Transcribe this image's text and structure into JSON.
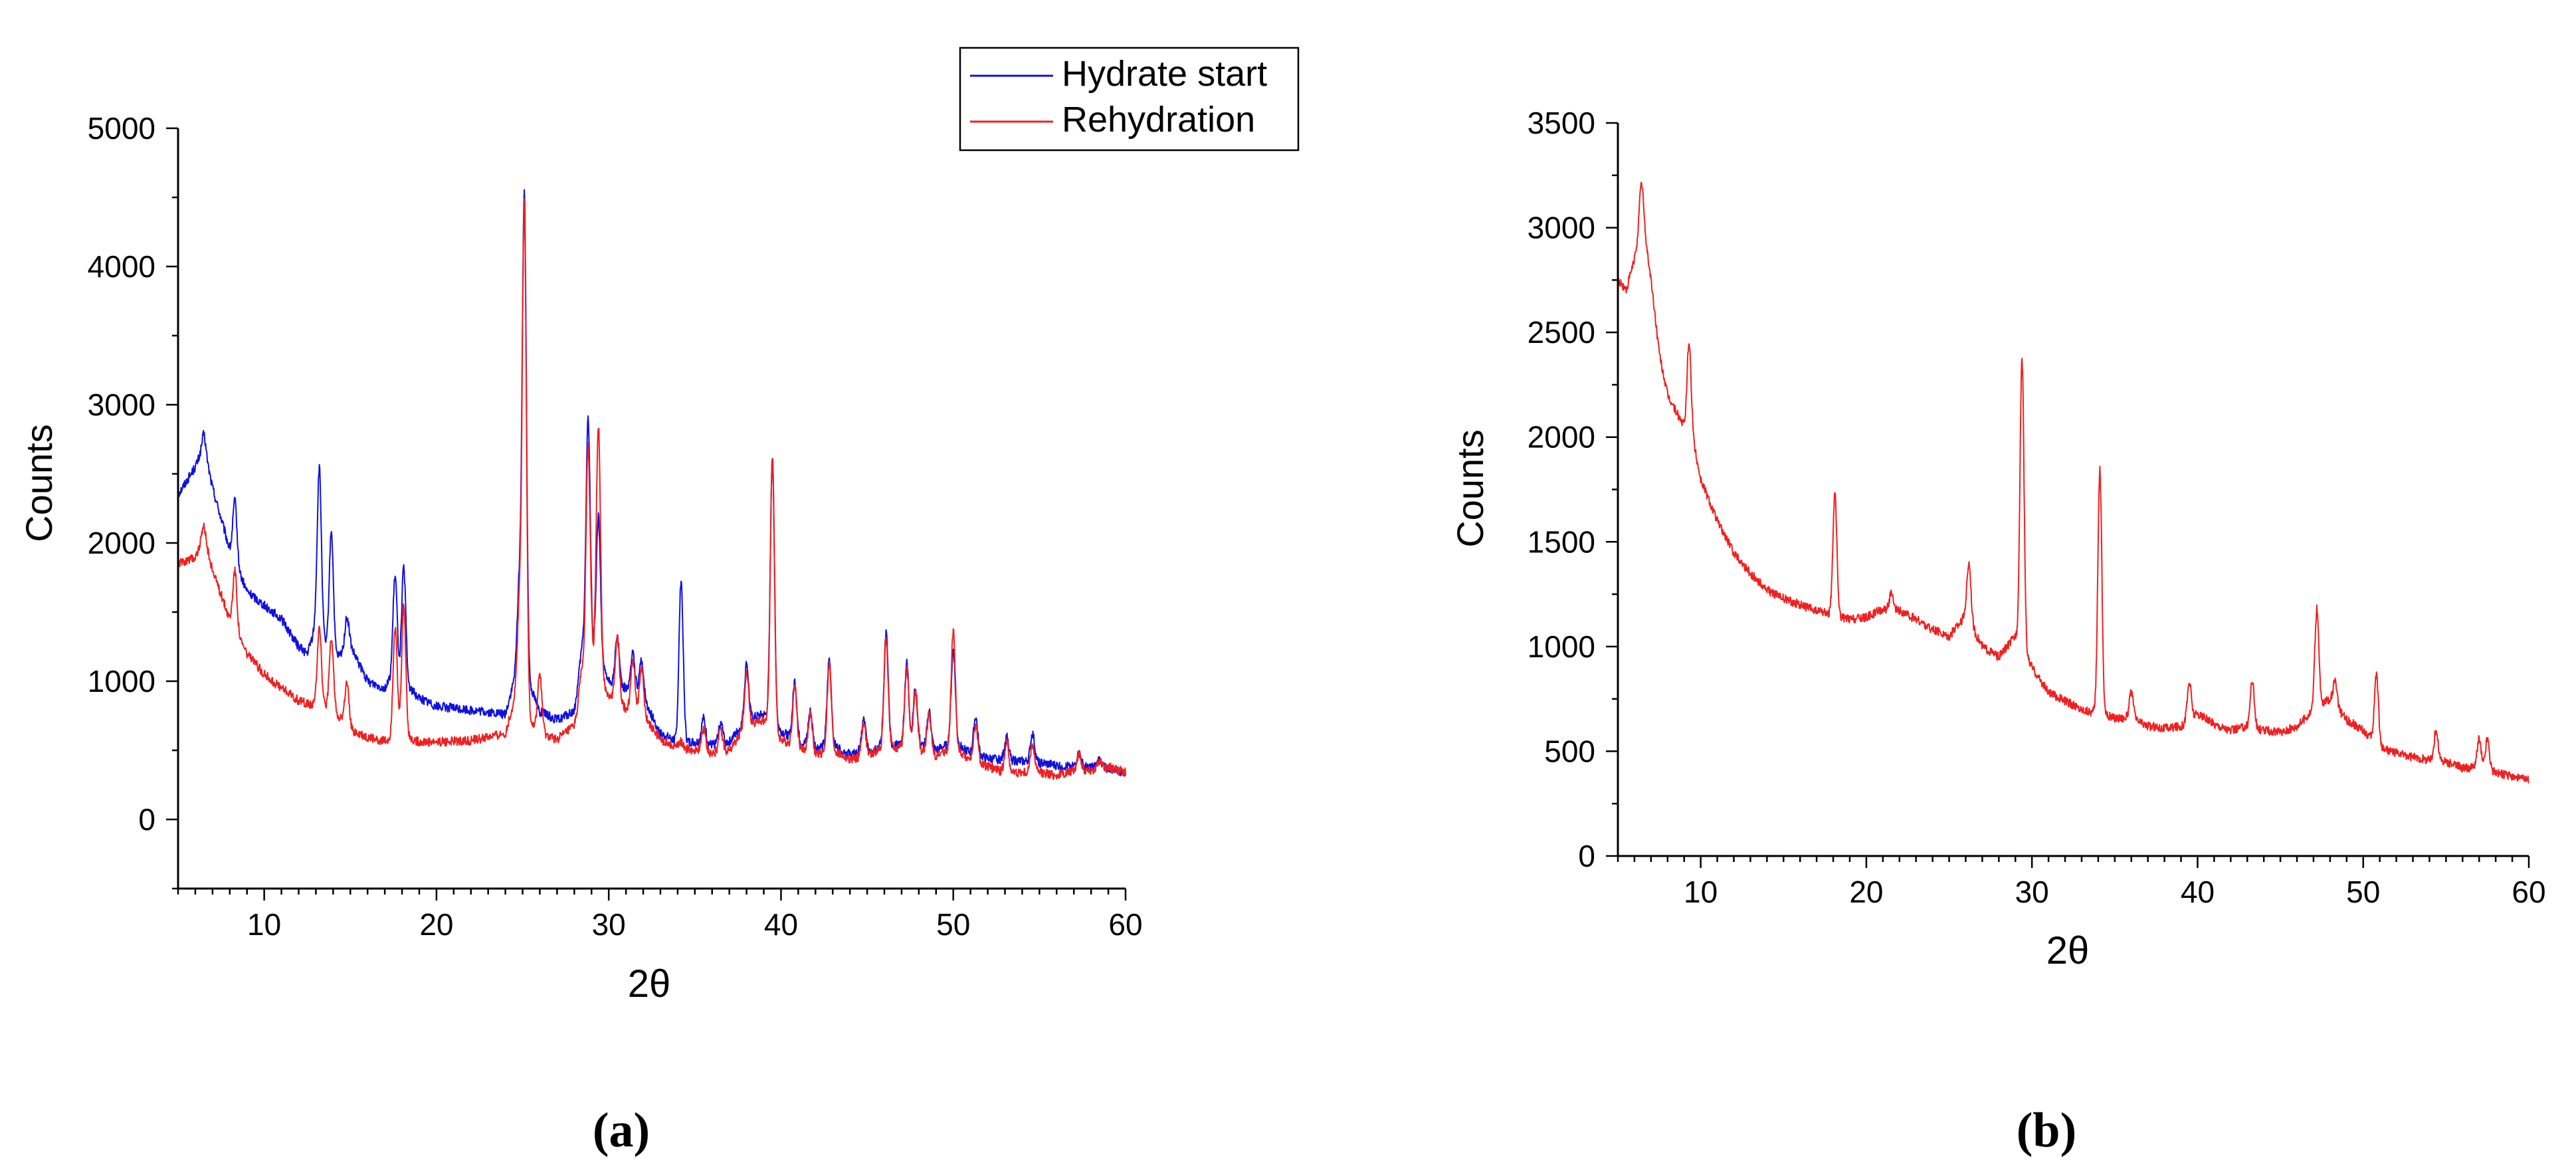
{
  "colors": {
    "blue": "#1010e0",
    "red": "#f02020",
    "axis": "#000000"
  },
  "chart_data": [
    {
      "type": "line",
      "panel_label": "(a)",
      "xlabel": "2θ",
      "ylabel": "Counts",
      "xlim": [
        5,
        60
      ],
      "ylim": [
        -500,
        5000
      ],
      "xticks": [
        10,
        20,
        30,
        40,
        50,
        60
      ],
      "yticks": [
        0,
        1000,
        2000,
        3000,
        4000,
        5000
      ],
      "legend_position": "top-right",
      "series": [
        {
          "name": "Hydrate start",
          "color": "#1010e0",
          "baseline": [
            [
              5,
              2350
            ],
            [
              6,
              2550
            ],
            [
              6.5,
              2700
            ],
            [
              7,
              2400
            ],
            [
              8,
              1950
            ],
            [
              9,
              1650
            ],
            [
              10,
              1550
            ],
            [
              11,
              1450
            ],
            [
              12,
              1250
            ],
            [
              12.5,
              1200
            ],
            [
              13,
              1400
            ],
            [
              14,
              1150
            ],
            [
              15,
              1250
            ],
            [
              16,
              1000
            ],
            [
              17,
              950
            ],
            [
              17.5,
              1050
            ],
            [
              18,
              1000
            ],
            [
              19,
              880
            ],
            [
              20,
              820
            ],
            [
              22,
              790
            ],
            [
              24,
              760
            ],
            [
              24.5,
              1000
            ],
            [
              25,
              1100
            ],
            [
              25.5,
              950
            ],
            [
              26,
              780
            ],
            [
              27,
              720
            ],
            [
              28,
              780
            ],
            [
              28.5,
              1200
            ],
            [
              29,
              1250
            ],
            [
              30,
              1000
            ],
            [
              31,
              950
            ],
            [
              32,
              880
            ],
            [
              33,
              620
            ],
            [
              34,
              560
            ],
            [
              35,
              560
            ],
            [
              36,
              540
            ],
            [
              37,
              560
            ],
            [
              38,
              720
            ],
            [
              39,
              760
            ],
            [
              40,
              640
            ],
            [
              41,
              560
            ],
            [
              42,
              520
            ],
            [
              43,
              540
            ],
            [
              44,
              470
            ],
            [
              45,
              500
            ],
            [
              46,
              540
            ],
            [
              47,
              540
            ],
            [
              48,
              540
            ],
            [
              49,
              500
            ],
            [
              50,
              560
            ],
            [
              51,
              480
            ],
            [
              52,
              440
            ],
            [
              53,
              430
            ],
            [
              54,
              420
            ],
            [
              55,
              410
            ],
            [
              56,
              390
            ],
            [
              57,
              380
            ],
            [
              58,
              380
            ],
            [
              59,
              370
            ],
            [
              60,
              340
            ]
          ],
          "peaks": [
            [
              6.5,
              2790
            ],
            [
              8.3,
              2300
            ],
            [
              13.2,
              2540
            ],
            [
              13.9,
              2090
            ],
            [
              14.8,
              1460
            ],
            [
              17.6,
              1760
            ],
            [
              18.1,
              1820
            ],
            [
              24.8,
              1680
            ],
            [
              25.1,
              4500
            ],
            [
              28.4,
              1200
            ],
            [
              28.8,
              2900
            ],
            [
              29.4,
              2200
            ],
            [
              30.5,
              1320
            ],
            [
              31.4,
              1200
            ],
            [
              31.9,
              1150
            ],
            [
              34.2,
              1730
            ],
            [
              35.5,
              730
            ],
            [
              36.5,
              700
            ],
            [
              38,
              1130
            ],
            [
              39.5,
              2620
            ],
            [
              40.8,
              1000
            ],
            [
              41.7,
              780
            ],
            [
              42.8,
              1160
            ],
            [
              44.8,
              720
            ],
            [
              46.1,
              1350
            ],
            [
              47.3,
              1130
            ],
            [
              47.8,
              950
            ],
            [
              48.6,
              780
            ],
            [
              50,
              1230
            ],
            [
              51.3,
              740
            ],
            [
              53.1,
              600
            ],
            [
              54.6,
              620
            ],
            [
              57.3,
              480
            ],
            [
              58.5,
              440
            ]
          ]
        },
        {
          "name": "Rehydration",
          "color": "#f02020",
          "baseline": [
            [
              5,
              1850
            ],
            [
              6,
              1900
            ],
            [
              6.5,
              2050
            ],
            [
              7,
              1800
            ],
            [
              8,
              1450
            ],
            [
              9,
              1200
            ],
            [
              10,
              1050
            ],
            [
              11,
              950
            ],
            [
              12,
              860
            ],
            [
              13,
              820
            ],
            [
              14,
              800
            ],
            [
              15,
              650
            ],
            [
              16,
              590
            ],
            [
              17,
              570
            ],
            [
              18,
              600
            ],
            [
              19,
              560
            ],
            [
              20,
              560
            ],
            [
              22,
              570
            ],
            [
              24,
              620
            ],
            [
              24.5,
              850
            ],
            [
              25,
              900
            ],
            [
              25.5,
              700
            ],
            [
              26,
              620
            ],
            [
              27,
              580
            ],
            [
              28,
              680
            ],
            [
              28.5,
              1000
            ],
            [
              29,
              1150
            ],
            [
              30,
              900
            ],
            [
              31,
              800
            ],
            [
              32,
              750
            ],
            [
              33,
              580
            ],
            [
              34,
              520
            ],
            [
              35,
              500
            ],
            [
              36,
              480
            ],
            [
              37,
              500
            ],
            [
              38,
              680
            ],
            [
              39,
              720
            ],
            [
              40,
              580
            ],
            [
              41,
              520
            ],
            [
              42,
              470
            ],
            [
              43,
              500
            ],
            [
              44,
              430
            ],
            [
              45,
              460
            ],
            [
              46,
              520
            ],
            [
              47,
              520
            ],
            [
              48,
              500
            ],
            [
              49,
              460
            ],
            [
              50,
              520
            ],
            [
              51,
              430
            ],
            [
              52,
              380
            ],
            [
              53,
              340
            ],
            [
              54,
              340
            ],
            [
              55,
              340
            ],
            [
              56,
              320
            ],
            [
              57,
              350
            ],
            [
              58,
              360
            ],
            [
              59,
              380
            ],
            [
              60,
              340
            ]
          ],
          "peaks": [
            [
              6.5,
              2120
            ],
            [
              8.3,
              1800
            ],
            [
              13.2,
              1400
            ],
            [
              13.9,
              1300
            ],
            [
              14.8,
              980
            ],
            [
              17.6,
              1400
            ],
            [
              18.1,
              1550
            ],
            [
              24.8,
              1500
            ],
            [
              25.1,
              4430
            ],
            [
              26,
              1050
            ],
            [
              28.4,
              1050
            ],
            [
              28.8,
              2700
            ],
            [
              29.4,
              2850
            ],
            [
              30.5,
              1320
            ],
            [
              31.4,
              1160
            ],
            [
              31.9,
              1100
            ],
            [
              34.2,
              560
            ],
            [
              35.5,
              660
            ],
            [
              36.5,
              650
            ],
            [
              38,
              1080
            ],
            [
              39.5,
              2640
            ],
            [
              40.8,
              970
            ],
            [
              41.7,
              760
            ],
            [
              42.8,
              1120
            ],
            [
              44.8,
              700
            ],
            [
              46.1,
              1300
            ],
            [
              47.3,
              1100
            ],
            [
              47.8,
              920
            ],
            [
              48.6,
              760
            ],
            [
              50,
              1360
            ],
            [
              51.3,
              690
            ],
            [
              53.1,
              560
            ],
            [
              54.6,
              540
            ],
            [
              57.3,
              480
            ],
            [
              58.5,
              420
            ]
          ]
        }
      ]
    },
    {
      "type": "line",
      "panel_label": "(b)",
      "xlabel": "2θ",
      "ylabel": "Counts",
      "xlim": [
        5,
        60
      ],
      "ylim": [
        0,
        3500
      ],
      "xticks": [
        10,
        20,
        30,
        40,
        50,
        60
      ],
      "yticks": [
        0,
        500,
        1000,
        1500,
        2000,
        2500,
        3000,
        3500
      ],
      "series": [
        {
          "color": "#f02020",
          "baseline": [
            [
              5,
              2750
            ],
            [
              5.5,
              2700
            ],
            [
              6,
              2850
            ],
            [
              6.5,
              3050
            ],
            [
              7,
              2750
            ],
            [
              7.5,
              2400
            ],
            [
              8,
              2200
            ],
            [
              9,
              2050
            ],
            [
              9.5,
              2000
            ],
            [
              10,
              1800
            ],
            [
              11,
              1600
            ],
            [
              12,
              1450
            ],
            [
              13,
              1350
            ],
            [
              14,
              1270
            ],
            [
              15,
              1230
            ],
            [
              16,
              1200
            ],
            [
              17,
              1170
            ],
            [
              18,
              1150
            ],
            [
              19,
              1130
            ],
            [
              20,
              1140
            ],
            [
              21,
              1180
            ],
            [
              22,
              1170
            ],
            [
              23,
              1130
            ],
            [
              24,
              1080
            ],
            [
              25,
              1050
            ],
            [
              26,
              1150
            ],
            [
              27,
              1000
            ],
            [
              28,
              950
            ],
            [
              29,
              1050
            ],
            [
              30,
              900
            ],
            [
              31,
              780
            ],
            [
              32,
              740
            ],
            [
              33,
              700
            ],
            [
              34,
              680
            ],
            [
              35,
              660
            ],
            [
              36,
              660
            ],
            [
              37,
              620
            ],
            [
              38,
              610
            ],
            [
              39,
              620
            ],
            [
              40,
              680
            ],
            [
              41,
              630
            ],
            [
              42,
              600
            ],
            [
              43,
              620
            ],
            [
              44,
              600
            ],
            [
              45,
              590
            ],
            [
              46,
              620
            ],
            [
              47,
              700
            ],
            [
              48,
              750
            ],
            [
              49,
              650
            ],
            [
              50,
              600
            ],
            [
              51,
              520
            ],
            [
              52,
              490
            ],
            [
              53,
              470
            ],
            [
              54,
              460
            ],
            [
              55,
              450
            ],
            [
              56,
              420
            ],
            [
              57,
              420
            ],
            [
              58,
              400
            ],
            [
              59,
              380
            ],
            [
              60,
              360
            ]
          ],
          "peaks": [
            [
              6.4,
              3200
            ],
            [
              9.3,
              2450
            ],
            [
              18.1,
              1720
            ],
            [
              21.5,
              1250
            ],
            [
              26.2,
              1400
            ],
            [
              29.4,
              2380
            ],
            [
              34.1,
              1850
            ],
            [
              36,
              780
            ],
            [
              39.5,
              830
            ],
            [
              43.3,
              840
            ],
            [
              47.2,
              1180
            ],
            [
              48.3,
              830
            ],
            [
              50.8,
              870
            ],
            [
              54.4,
              600
            ],
            [
              57,
              560
            ],
            [
              57.5,
              560
            ]
          ]
        }
      ]
    }
  ]
}
